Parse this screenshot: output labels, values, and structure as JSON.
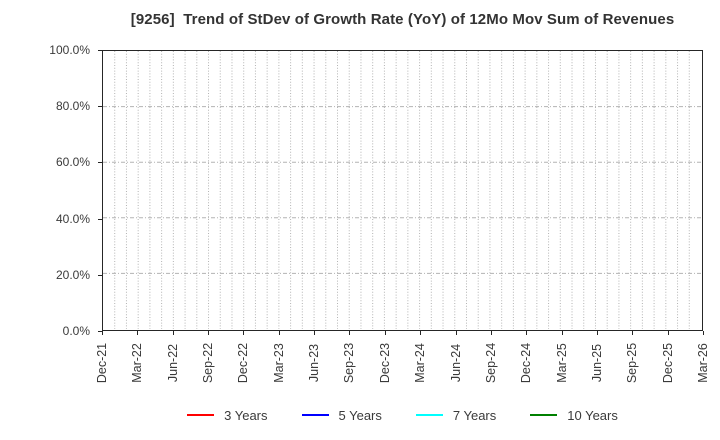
{
  "title": "[9256]  Trend of StDev of Growth Rate (YoY) of 12Mo Mov Sum of Revenues",
  "y_axis": {
    "tick_labels": [
      "100.0%",
      "80.0%",
      "60.0%",
      "40.0%",
      "20.0%",
      "0.0%"
    ],
    "tick_values": [
      100,
      80,
      60,
      40,
      20,
      0
    ]
  },
  "x_axis": {
    "tick_labels": [
      "Dec-21",
      "Mar-22",
      "Jun-22",
      "Sep-22",
      "Dec-22",
      "Mar-23",
      "Jun-23",
      "Sep-23",
      "Dec-23",
      "Mar-24",
      "Jun-24",
      "Sep-24",
      "Dec-24",
      "Mar-25",
      "Jun-25",
      "Sep-25",
      "Dec-25",
      "Mar-26"
    ]
  },
  "legend": {
    "items": [
      {
        "label": "3 Years",
        "color": "#ff0000"
      },
      {
        "label": "5 Years",
        "color": "#0000ff"
      },
      {
        "label": "7 Years",
        "color": "#00ffff"
      },
      {
        "label": "10 Years",
        "color": "#008000"
      }
    ]
  },
  "colors": {
    "background": "#ffffff",
    "frame": "#262626",
    "grid": "#b3b3b3",
    "title_text": "#333333",
    "tick_text": "#3a3a3a"
  },
  "chart_data": {
    "type": "line",
    "title": "[9256]  Trend of StDev of Growth Rate (YoY) of 12Mo Mov Sum of Revenues",
    "xlabel": "",
    "ylabel": "",
    "ylim": [
      0,
      100
    ],
    "y_ticks": [
      0,
      20,
      40,
      60,
      80,
      100
    ],
    "y_tick_format": "percent_one_decimal",
    "x_tick_labels": [
      "Dec-21",
      "Mar-22",
      "Jun-22",
      "Sep-22",
      "Dec-22",
      "Mar-23",
      "Jun-23",
      "Sep-23",
      "Dec-23",
      "Mar-24",
      "Jun-24",
      "Sep-24",
      "Dec-24",
      "Mar-25",
      "Jun-25",
      "Sep-25",
      "Dec-25",
      "Mar-26"
    ],
    "x_minor_gridline_unit": "month",
    "x_total_months": 51,
    "grid": true,
    "legend_position": "bottom",
    "series": [
      {
        "name": "3 Years",
        "color": "#ff0000",
        "values": []
      },
      {
        "name": "5 Years",
        "color": "#0000ff",
        "values": []
      },
      {
        "name": "7 Years",
        "color": "#00ffff",
        "values": []
      },
      {
        "name": "10 Years",
        "color": "#008000",
        "values": []
      }
    ]
  }
}
